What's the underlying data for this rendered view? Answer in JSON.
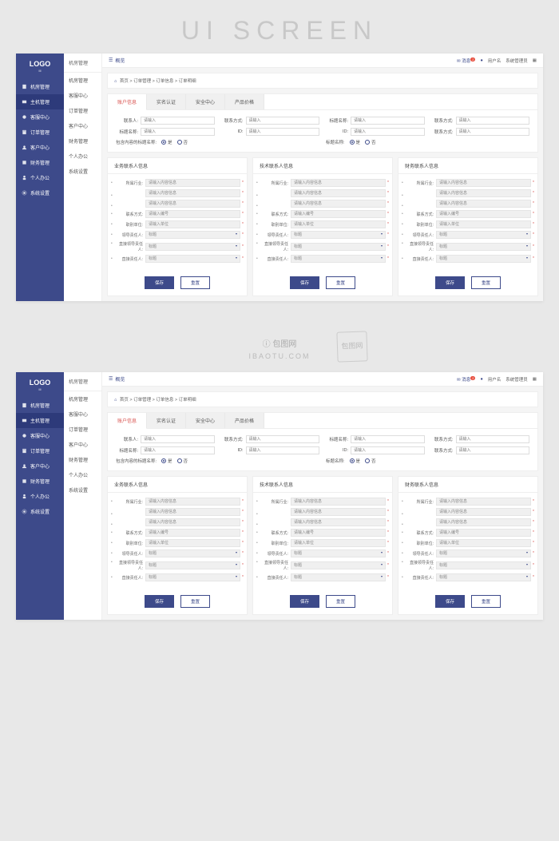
{
  "hero": {
    "title": "UI SCREEN"
  },
  "logo": {
    "text": "LOGO",
    "sub": "III"
  },
  "sidebar": [
    {
      "icon": "building",
      "label": "机房管理"
    },
    {
      "icon": "host",
      "label": "主机管理",
      "active": true
    },
    {
      "icon": "service",
      "label": "客服中心"
    },
    {
      "icon": "order",
      "label": "订单管理"
    },
    {
      "icon": "customer",
      "label": "客户中心"
    },
    {
      "icon": "finance",
      "label": "财务管理"
    },
    {
      "icon": "person",
      "label": "个人办公"
    },
    {
      "icon": "settings",
      "label": "系统设置"
    }
  ],
  "subnav": {
    "title": "机房管理",
    "items": [
      "机房管理",
      "客服中心",
      "订单管理",
      "客户中心",
      "财务管理",
      "个人办公",
      "系统设置"
    ]
  },
  "topbar": {
    "overview": "概览",
    "messages": "消息",
    "badge": "2",
    "user": "用户名",
    "admin": "系统管理员",
    "menu_icon": "▦"
  },
  "breadcrumb": {
    "items": [
      "首页",
      "订单管理",
      "订单信息",
      "订单明细"
    ]
  },
  "tabs": [
    "账户信息",
    "实名认证",
    "安全中心",
    "产品价格"
  ],
  "topform": {
    "rows": [
      [
        {
          "label": "联系人:",
          "ph": "请输入"
        },
        {
          "label": "联系方式:",
          "ph": "请输入"
        },
        {
          "label": "标题名称:",
          "ph": "请输入"
        },
        {
          "label": "联系方式:",
          "ph": "请输入"
        }
      ],
      [
        {
          "label": "标题名称:",
          "ph": "请输入"
        },
        {
          "label": "ID:",
          "ph": "请输入"
        },
        {
          "label": "ID:",
          "ph": "请输入"
        },
        {
          "label": "联系方式:",
          "ph": "请输入"
        }
      ]
    ],
    "radio1": {
      "label": "包含内容的标题名称:",
      "yes": "是",
      "no": "否"
    },
    "radio2": {
      "label": "标题名称:",
      "yes": "是",
      "no": "否"
    }
  },
  "cards": [
    {
      "title": "业务联系人信息"
    },
    {
      "title": "技术联系人信息"
    },
    {
      "title": "财务联系人信息"
    }
  ],
  "card_fields": [
    {
      "label": "所属行业:",
      "ph": "请输入内容信息",
      "req": true,
      "multi": 3
    },
    {
      "label": "联系方式:",
      "ph": "请输入编号",
      "req": true
    },
    {
      "label": "职别单位:",
      "ph": "请输入单位",
      "req": true
    },
    {
      "label": "领导责任人:",
      "ph": "标题",
      "dd": true,
      "req": true
    },
    {
      "label": "直接领导责任人:",
      "ph": "标题",
      "dd": true,
      "req": true
    },
    {
      "label": "直接责任人:",
      "ph": "标题",
      "dd": true,
      "req": true
    }
  ],
  "buttons": {
    "save": "保存",
    "reset": "重置"
  },
  "watermark": {
    "logo": "包图网",
    "text": "IBAOTU.COM",
    "stamp": "包图网"
  },
  "colors": {
    "primary": "#3d4a8a",
    "danger": "#d9534f",
    "bg": "#f5f5f5",
    "border": "#eee"
  }
}
